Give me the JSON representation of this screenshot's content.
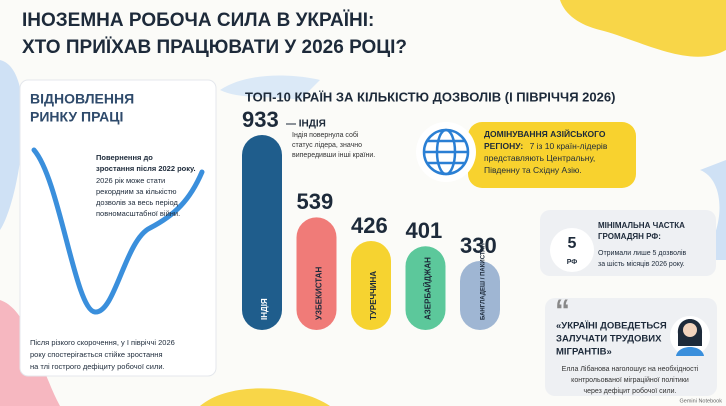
{
  "header": {
    "title_lines": [
      "ІНОЗЕМНА РОБОЧА СИЛА В УКРАЇНІ:",
      "ХТО ПРИЇХАВ ПРАЦЮВАТИ У 2026 РОЦІ?"
    ]
  },
  "recovery": {
    "title_lines": [
      "ВІДНОВЛЕННЯ",
      "РИНКУ ПРАЦІ"
    ],
    "highlight_lines": [
      "Повернення до",
      "зростання після 2022 року."
    ],
    "note_lines": [
      "2026 рік може стати",
      "рекордним за кількістю",
      "дозволів за весь період",
      "повномасштабної війни."
    ],
    "footer_lines": [
      "Після різкого скорочення, у І півріччі 2026",
      "року спостерігається стійке зростання",
      "на тлі гострого дефіциту робочої сили."
    ]
  },
  "chart_data": {
    "type": "bar",
    "title": "ТОП-10 КРАЇН ЗА КІЛЬКІСТЮ ДОЗВОЛІВ (І ПІВРІЧЧЯ 2026)",
    "categories": [
      "ІНДІЯ",
      "УЗБЕКИСТАН",
      "ТУРЕЧЧИНА",
      "АЗЕРБАЙДЖАН",
      "БАНГЛАДЕШ / ПАКИСТАН"
    ],
    "values": [
      933,
      539,
      426,
      401,
      330
    ],
    "colors": [
      "#1f5d8c",
      "#f07b78",
      "#f6d330",
      "#5cc89b",
      "#9fb6d3"
    ],
    "annotation": "— ІНДІЯ",
    "annotation_note_lines": [
      "Індія повернула собі",
      "статус лідера, значно",
      "випередивши інші країни."
    ]
  },
  "asia": {
    "lines": [
      "ДОМІНУВАННЯ АЗІЙСЬКОГО",
      "РЕГІОНУ:",
      "7 із 10 країн-лідерів",
      "представляють Центральну,",
      "Південну та Східну Азію."
    ]
  },
  "rf_card": {
    "number": "5",
    "unit": "РФ",
    "title_lines": [
      "МІНІМАЛЬНА ЧАСТКА",
      "ГРОМАДЯН РФ:"
    ],
    "note_lines": [
      "Отримали лише 5 дозволів",
      "за шість місяців 2026 року."
    ]
  },
  "quote": {
    "mark": "“",
    "lines": [
      "«УКРАЇНІ ДОВЕДЕТЬСЯ",
      "ЗАЛУЧАТИ ТРУДОВИХ",
      "МІГРАНТІВ»"
    ],
    "note_lines": [
      "Елла Лібанова наголошує на необхідності",
      "контрольованої міграційної політики",
      "через дефіцит робочої сили."
    ]
  },
  "footer": {
    "brand": "Gemini Notebook"
  }
}
